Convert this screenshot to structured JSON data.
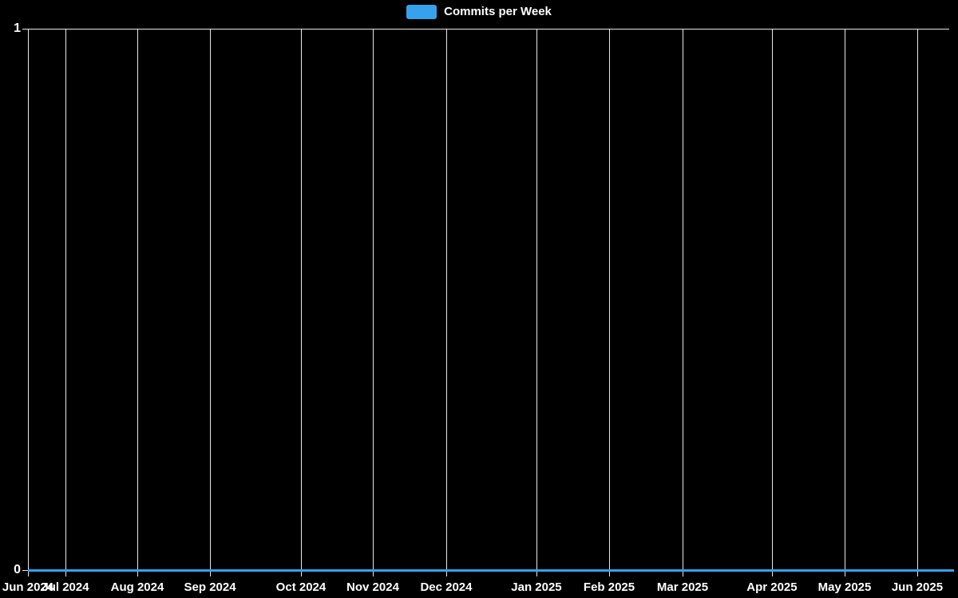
{
  "chart_data": {
    "type": "line",
    "title": "",
    "legend": [
      "Commits per Week"
    ],
    "legend_position": "top-center",
    "background_color": "#000000",
    "grid": {
      "vertical": true,
      "horizontal": false,
      "color": "#e8e8e8"
    },
    "ylim": [
      0,
      1
    ],
    "y_max_label": "1",
    "y_min_label": "0",
    "x_range": [
      "Jun 2024",
      "Jun 2025"
    ],
    "x_ticks": [
      {
        "label": "Jun 2024",
        "pos_pct": 0
      },
      {
        "label": "Jul 2024",
        "pos_pct": 4.05
      },
      {
        "label": "Aug 2024",
        "pos_pct": 11.81
      },
      {
        "label": "Sep 2024",
        "pos_pct": 19.66
      },
      {
        "label": "Oct 2024",
        "pos_pct": 29.48
      },
      {
        "label": "Nov 2024",
        "pos_pct": 37.24
      },
      {
        "label": "Dec 2024",
        "pos_pct": 45.17
      },
      {
        "label": "Jan 2025",
        "pos_pct": 54.91
      },
      {
        "label": "Feb 2025",
        "pos_pct": 62.76
      },
      {
        "label": "Mar 2025",
        "pos_pct": 70.69
      },
      {
        "label": "Apr 2025",
        "pos_pct": 80.34
      },
      {
        "label": "May 2025",
        "pos_pct": 88.19
      },
      {
        "label": "Jun 2025",
        "pos_pct": 96.03
      }
    ],
    "series": [
      {
        "name": "Commits per Week",
        "color": "#36a2eb",
        "constant_value": 0,
        "values_at_ticks": [
          0,
          0,
          0,
          0,
          0,
          0,
          0,
          0,
          0,
          0,
          0,
          0,
          0
        ]
      }
    ]
  }
}
